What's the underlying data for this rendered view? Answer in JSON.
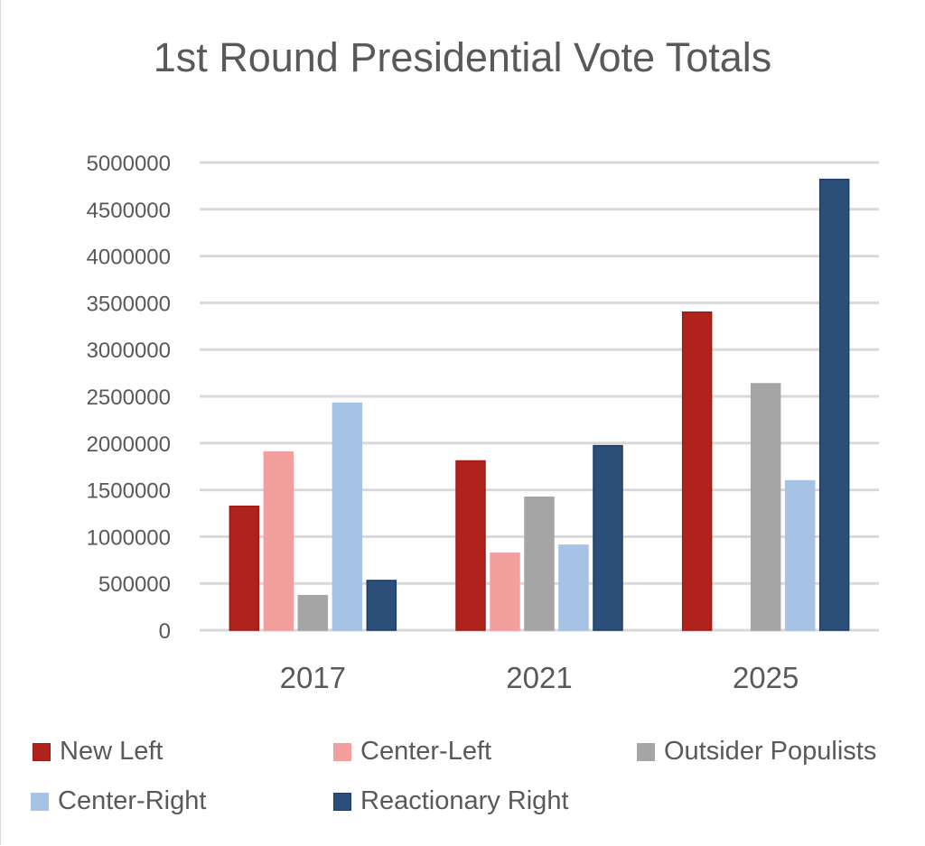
{
  "chart_data": {
    "type": "bar",
    "title": "1st Round Presidential Vote Totals",
    "xlabel": "",
    "ylabel": "",
    "categories": [
      "2017",
      "2021",
      "2025"
    ],
    "ylim": [
      0,
      5000000
    ],
    "yticks": [
      "0",
      "500000",
      "1000000",
      "1500000",
      "2000000",
      "2500000",
      "3000000",
      "3500000",
      "4000000",
      "4500000",
      "5000000"
    ],
    "ytick_values": [
      0,
      500000,
      1000000,
      1500000,
      2000000,
      2500000,
      3000000,
      3500000,
      4000000,
      4500000,
      5000000
    ],
    "grid": true,
    "legend_position": "bottom",
    "series": [
      {
        "name": "New Left",
        "color": "#b0221c",
        "border": "#9e1b16",
        "values": [
          1325000,
          1810000,
          3400000
        ]
      },
      {
        "name": "Center-Left",
        "color": "#f29f9d",
        "border": "#f29f9d",
        "values": [
          1905000,
          822000,
          0
        ]
      },
      {
        "name": "Outsider Populists",
        "color": "#a5a5a5",
        "border": "#a5a5a5",
        "values": [
          370000,
          1422000,
          2635000
        ]
      },
      {
        "name": "Center-Right",
        "color": "#a6c3e5",
        "border": "#a6c3e5",
        "values": [
          2427000,
          909000,
          1597000
        ]
      },
      {
        "name": "Reactionary Right",
        "color": "#2b4f78",
        "border": "#1f3d66",
        "values": [
          532000,
          1973000,
          4820000
        ]
      }
    ]
  }
}
